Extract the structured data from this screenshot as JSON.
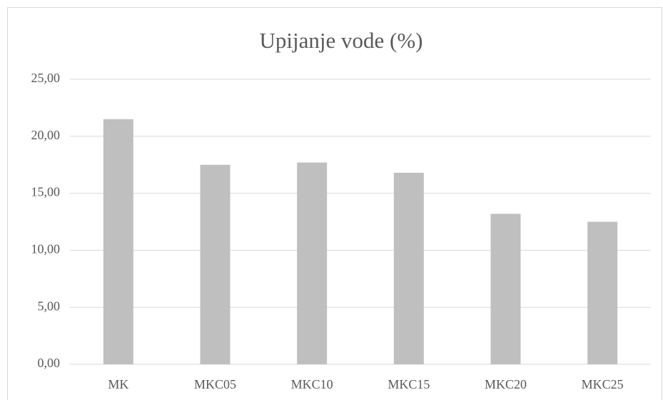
{
  "chart_data": {
    "type": "bar",
    "title": "Upijanje vode (%)",
    "categories": [
      "MK",
      "MKC05",
      "MKC10",
      "MKC15",
      "MKC20",
      "MKC25"
    ],
    "values": [
      21.5,
      17.5,
      17.7,
      16.8,
      13.2,
      12.5
    ],
    "color": "#bfbfbf",
    "ylim": [
      0,
      25
    ],
    "yticks": [
      {
        "value": 0,
        "label": "0,00"
      },
      {
        "value": 5,
        "label": "5,00"
      },
      {
        "value": 10,
        "label": "10,00"
      },
      {
        "value": 15,
        "label": "15,00"
      },
      {
        "value": 20,
        "label": "20,00"
      },
      {
        "value": 25,
        "label": "25,00"
      }
    ],
    "grid": true
  }
}
